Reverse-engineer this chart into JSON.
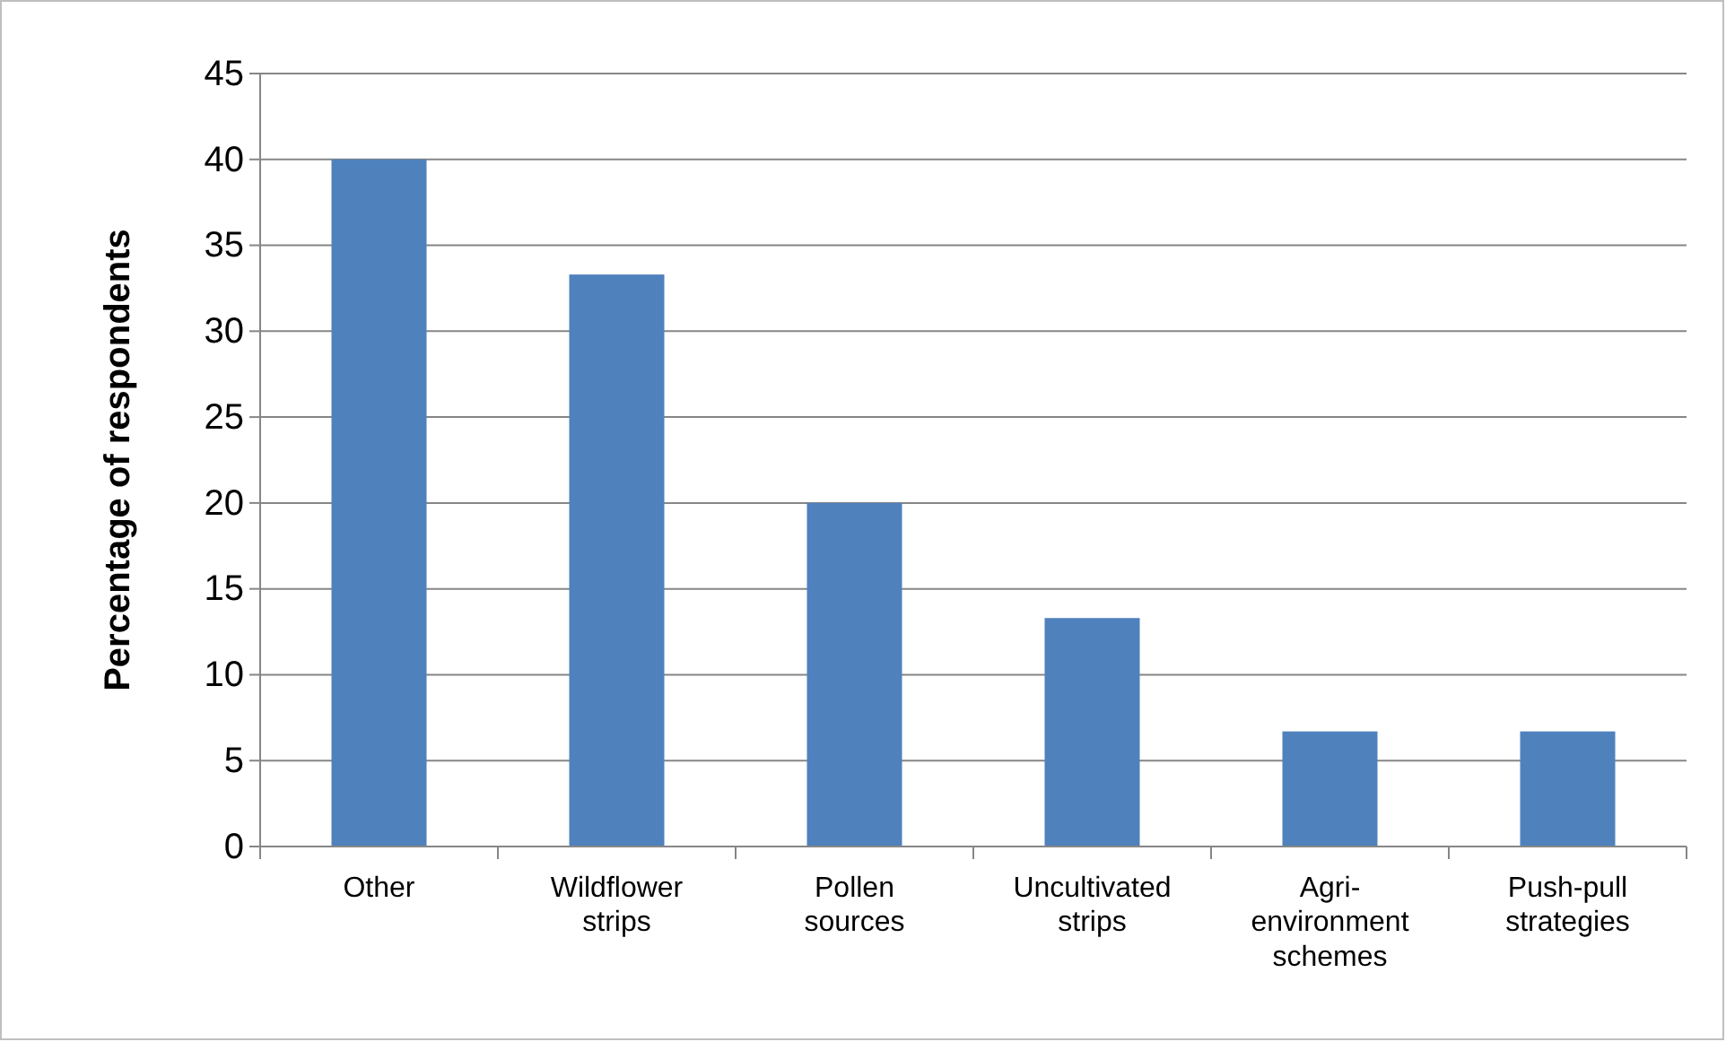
{
  "chart_data": {
    "type": "bar",
    "ylabel": "Percentage of respondents",
    "categories": [
      "Other",
      "Wildflower strips",
      "Pollen sources",
      "Uncultivated strips",
      "Agri-environment schemes",
      "Push-pull strategies"
    ],
    "values": [
      40,
      33.3,
      20,
      13.3,
      6.7,
      6.7
    ],
    "color": "#4f81bd",
    "ylim": [
      0,
      45
    ],
    "yticks": [
      0,
      5,
      10,
      15,
      20,
      25,
      30,
      35,
      40,
      45
    ],
    "grid": "y"
  }
}
